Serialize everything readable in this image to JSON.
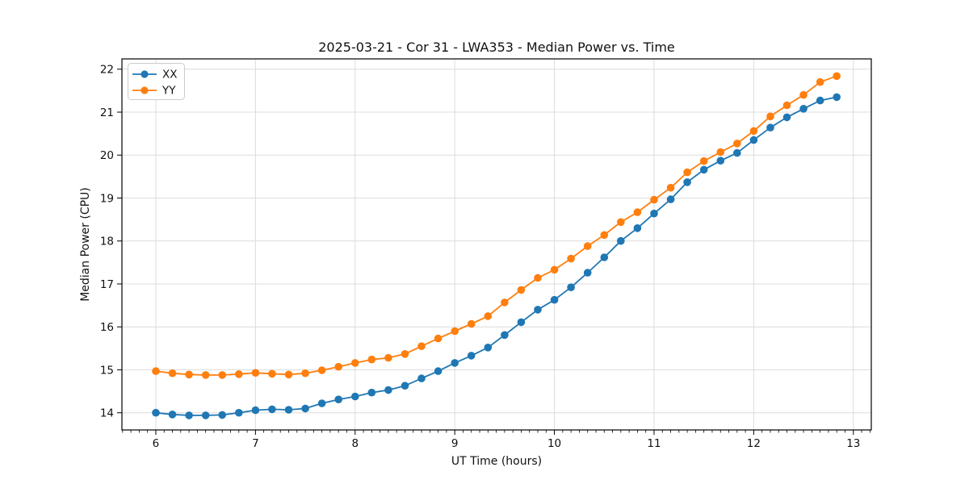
{
  "figure": {
    "background": "#ffffff"
  },
  "chart_data": {
    "type": "line",
    "title": "2025-03-21 - Cor 31 - LWA353 - Median Power vs. Time",
    "xlabel": "UT Time (hours)",
    "ylabel": "Median Power (CPU)",
    "x": [
      6.0,
      6.1667,
      6.3333,
      6.5,
      6.6667,
      6.8333,
      7.0,
      7.1667,
      7.3333,
      7.5,
      7.6667,
      7.8333,
      8.0,
      8.1667,
      8.3333,
      8.5,
      8.6667,
      8.8333,
      9.0,
      9.1667,
      9.3333,
      9.5,
      9.6667,
      9.8333,
      10.0,
      10.1667,
      10.3333,
      10.5,
      10.6667,
      10.8333,
      11.0,
      11.1667,
      11.3333,
      11.5,
      11.6667,
      11.8333,
      12.0,
      12.1667,
      12.3333,
      12.5,
      12.6667,
      12.8333
    ],
    "series": [
      {
        "name": "XX",
        "color": "#1f77b4",
        "values": [
          14.0,
          13.96,
          13.94,
          13.94,
          13.95,
          14.0,
          14.06,
          14.08,
          14.07,
          14.1,
          14.22,
          14.31,
          14.38,
          14.47,
          14.53,
          14.63,
          14.8,
          14.97,
          15.16,
          15.33,
          15.52,
          15.81,
          16.11,
          16.4,
          16.63,
          16.92,
          17.26,
          17.62,
          18.0,
          18.3,
          18.64,
          18.97,
          19.37,
          19.66,
          19.87,
          20.05,
          20.35,
          20.64,
          20.88,
          21.08,
          21.27,
          21.35
        ]
      },
      {
        "name": "YY",
        "color": "#ff7f0e",
        "values": [
          14.97,
          14.92,
          14.89,
          14.88,
          14.88,
          14.9,
          14.93,
          14.91,
          14.89,
          14.92,
          14.99,
          15.07,
          15.16,
          15.24,
          15.28,
          15.37,
          15.55,
          15.73,
          15.9,
          16.07,
          16.25,
          16.57,
          16.86,
          17.14,
          17.33,
          17.59,
          17.88,
          18.14,
          18.44,
          18.67,
          18.96,
          19.24,
          19.6,
          19.86,
          20.07,
          20.27,
          20.56,
          20.9,
          21.16,
          21.4,
          21.7,
          21.84
        ]
      }
    ],
    "xlim": [
      5.66,
      13.18
    ],
    "ylim": [
      13.6,
      22.24
    ],
    "xticks": [
      6,
      7,
      8,
      9,
      10,
      11,
      12,
      13
    ],
    "yticks": [
      14,
      15,
      16,
      17,
      18,
      19,
      20,
      21,
      22
    ],
    "x_minor_tick_step": 0.083333,
    "grid": true,
    "grid_color": "#dcdcdc",
    "axis_color": "#000000",
    "legend": {
      "position": "upper-left",
      "entries": [
        "XX",
        "YY"
      ]
    },
    "marker": "circle",
    "marker_size": 4.8,
    "line_width": 1.8
  }
}
